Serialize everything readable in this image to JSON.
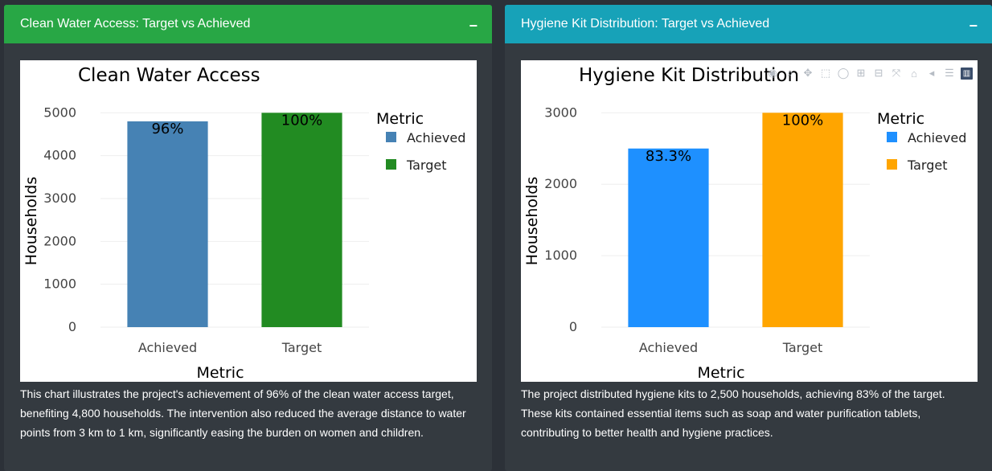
{
  "panels": [
    {
      "header": "Clean Water Access: Target vs Achieved",
      "collapse_label": "−",
      "description": "This chart illustrates the project's achievement of 96% of the clean water access target, benefiting 4,800 households. The intervention also reduced the average distance to water points from 3 km to 1 km, significantly easing the burden on women and children."
    },
    {
      "header": "Hygiene Kit Distribution: Target vs Achieved",
      "collapse_label": "−",
      "description": "The project distributed hygiene kits to 2,500 households, achieving 83% of the target. These kits contained essential items such as soap and water purification tablets, contributing to better health and hygiene practices."
    }
  ],
  "chart_data": [
    {
      "type": "bar",
      "title": "Clean Water Access",
      "xlabel": "Metric",
      "ylabel": "Households",
      "categories": [
        "Achieved",
        "Target"
      ],
      "values": [
        4800,
        5000
      ],
      "data_labels": [
        "96%",
        "100%"
      ],
      "colors": [
        "#4682b4",
        "#228b22"
      ],
      "ylim": [
        0,
        5250
      ],
      "yticks": [
        0,
        1000,
        2000,
        3000,
        4000,
        5000
      ],
      "legend_title": "Metric",
      "legend_entries": [
        "Achieved",
        "Target"
      ],
      "legend_position": "top-right",
      "grid": true
    },
    {
      "type": "bar",
      "title": "Hygiene Kit Distribution",
      "xlabel": "Metric",
      "ylabel": "Households",
      "categories": [
        "Achieved",
        "Target"
      ],
      "values": [
        2500,
        3000
      ],
      "data_labels": [
        "83.3%",
        "100%"
      ],
      "colors": [
        "#1e90ff",
        "#ffa500"
      ],
      "ylim": [
        0,
        3150
      ],
      "yticks": [
        0,
        1000,
        2000,
        3000
      ],
      "legend_title": "Metric",
      "legend_entries": [
        "Achieved",
        "Target"
      ],
      "legend_position": "top-right",
      "grid": true
    }
  ],
  "modebar_icons": [
    "camera-icon",
    "zoom-icon",
    "pan-icon",
    "box-select-icon",
    "lasso-icon",
    "zoom-in-icon",
    "zoom-out-icon",
    "autoscale-icon",
    "home-icon",
    "spike-lines-icon",
    "hover-compare-icon",
    "plotly-logo-icon"
  ]
}
